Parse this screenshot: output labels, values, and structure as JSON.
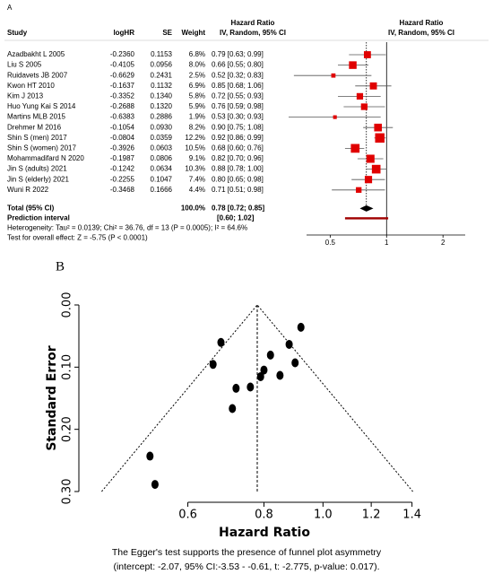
{
  "chart_data": [
    {
      "type": "forest",
      "panel": "A",
      "columns": [
        "Study",
        "logHR",
        "SE",
        "Weight"
      ],
      "effect_header": [
        "Hazard Ratio",
        "IV, Random, 95% CI"
      ],
      "plot_header": [
        "Hazard Ratio",
        "IV, Random, 95% CI"
      ],
      "categories": [
        "Azadbakht L 2005",
        "Liu S 2005",
        "Ruidavets JB 2007",
        "Kwon HT 2010",
        "Kim J 2013",
        "Huo Yung Kai S 2014",
        "Martins MLB 2015",
        "Drehmer M 2016",
        "Shin S (men) 2017",
        "Shin S (women) 2017",
        "Mohammadifard N 2020",
        "Jin S (adults) 2021",
        "Jin S (elderly) 2021",
        "Wuni R 2022"
      ],
      "logHR": [
        "-0.2360",
        "-0.4105",
        "-0.6629",
        "-0.1637",
        "-0.3352",
        "-0.2688",
        "-0.6383",
        "-0.1054",
        "-0.0804",
        "-0.3926",
        "-0.1987",
        "-0.1242",
        "-0.2255",
        "-0.3468"
      ],
      "se": [
        "0.1153",
        "0.0956",
        "0.2431",
        "0.1132",
        "0.1340",
        "0.1320",
        "0.2886",
        "0.0930",
        "0.0359",
        "0.0603",
        "0.0806",
        "0.0634",
        "0.1047",
        "0.1666"
      ],
      "weights": [
        6.8,
        8.0,
        2.5,
        6.9,
        5.8,
        5.9,
        1.9,
        8.2,
        12.2,
        10.5,
        9.1,
        10.3,
        7.4,
        4.4
      ],
      "weight_labels": [
        "6.8%",
        "8.0%",
        "2.5%",
        "6.9%",
        "5.8%",
        "5.9%",
        "1.9%",
        "8.2%",
        "12.2%",
        "10.5%",
        "9.1%",
        "10.3%",
        "7.4%",
        "4.4%"
      ],
      "values": [
        0.79,
        0.66,
        0.52,
        0.85,
        0.72,
        0.76,
        0.53,
        0.9,
        0.92,
        0.68,
        0.82,
        0.88,
        0.8,
        0.71
      ],
      "ci_low": [
        0.63,
        0.55,
        0.32,
        0.68,
        0.55,
        0.59,
        0.3,
        0.75,
        0.86,
        0.6,
        0.7,
        0.78,
        0.65,
        0.51
      ],
      "ci_high": [
        0.99,
        0.8,
        0.83,
        1.06,
        0.93,
        0.98,
        0.93,
        1.08,
        0.99,
        0.76,
        0.96,
        1.0,
        0.98,
        0.98
      ],
      "value_labels": [
        "0.79 [0.63; 0.99]",
        "0.66 [0.55; 0.80]",
        "0.52 [0.32; 0.83]",
        "0.85 [0.68; 1.06]",
        "0.72 [0.55; 0.93]",
        "0.76 [0.59; 0.98]",
        "0.53 [0.30; 0.93]",
        "0.90 [0.75; 1.08]",
        "0.92 [0.86; 0.99]",
        "0.68 [0.60; 0.76]",
        "0.82 [0.70; 0.96]",
        "0.88 [0.78; 1.00]",
        "0.80 [0.65; 0.98]",
        "0.71 [0.51; 0.98]"
      ],
      "total": {
        "label": "Total (95% CI)",
        "weight_label": "100.0%",
        "value": 0.78,
        "ci_low": 0.72,
        "ci_high": 0.85,
        "value_label": "0.78 [0.72; 0.85]"
      },
      "prediction": {
        "label": "Prediction interval",
        "ci_low": 0.6,
        "ci_high": 1.02,
        "value_label": "[0.60; 1.02]"
      },
      "heterogeneity": "Heterogeneity: Tau² = 0.0139; Chi² = 36.76, df = 13 (P = 0.0005); I² = 64.6%",
      "overall_test": "Test for overall effect: Z = -5.75 (P < 0.0001)",
      "xscale": "log",
      "xlim": [
        0.3,
        3
      ],
      "xticks": [
        0.5,
        1,
        2
      ],
      "reference": 1,
      "color": "#e00000",
      "prediction_color": "#a00000"
    },
    {
      "type": "scatter",
      "panel": "B",
      "xlabel": "Hazard Ratio",
      "ylabel": "Standard Error",
      "x": [
        0.79,
        0.66,
        0.52,
        0.85,
        0.72,
        0.76,
        0.53,
        0.9,
        0.92,
        0.68,
        0.82,
        0.88,
        0.8,
        0.71
      ],
      "values": [
        0.1153,
        0.0956,
        0.2431,
        0.1132,
        0.134,
        0.132,
        0.2886,
        0.093,
        0.0359,
        0.0603,
        0.0806,
        0.0634,
        0.1047,
        0.1666
      ],
      "xscale": "log",
      "xlim": [
        0.44,
        1.45
      ],
      "xticks": [
        0.6,
        0.8,
        {
          "value": 1.0,
          "label": "1.0"
        },
        1.2,
        1.4
      ],
      "ylim": [
        0,
        0.3
      ],
      "y_inverted": true,
      "yticks": [
        {
          "value": 0,
          "label": "0.00"
        },
        {
          "value": 0.1,
          "label": "0.10"
        },
        {
          "value": 0.2,
          "label": "0.20"
        },
        {
          "value": 0.3,
          "label": "0.30"
        }
      ],
      "pooled": 0.78,
      "color": "#000000",
      "caption": [
        "The Egger's test supports the presence of funnel plot asymmetry",
        "(intercept: -2.07, 95% CI:-3.53 - -0.61, t: -2.775, p-value: 0.017)."
      ]
    }
  ]
}
